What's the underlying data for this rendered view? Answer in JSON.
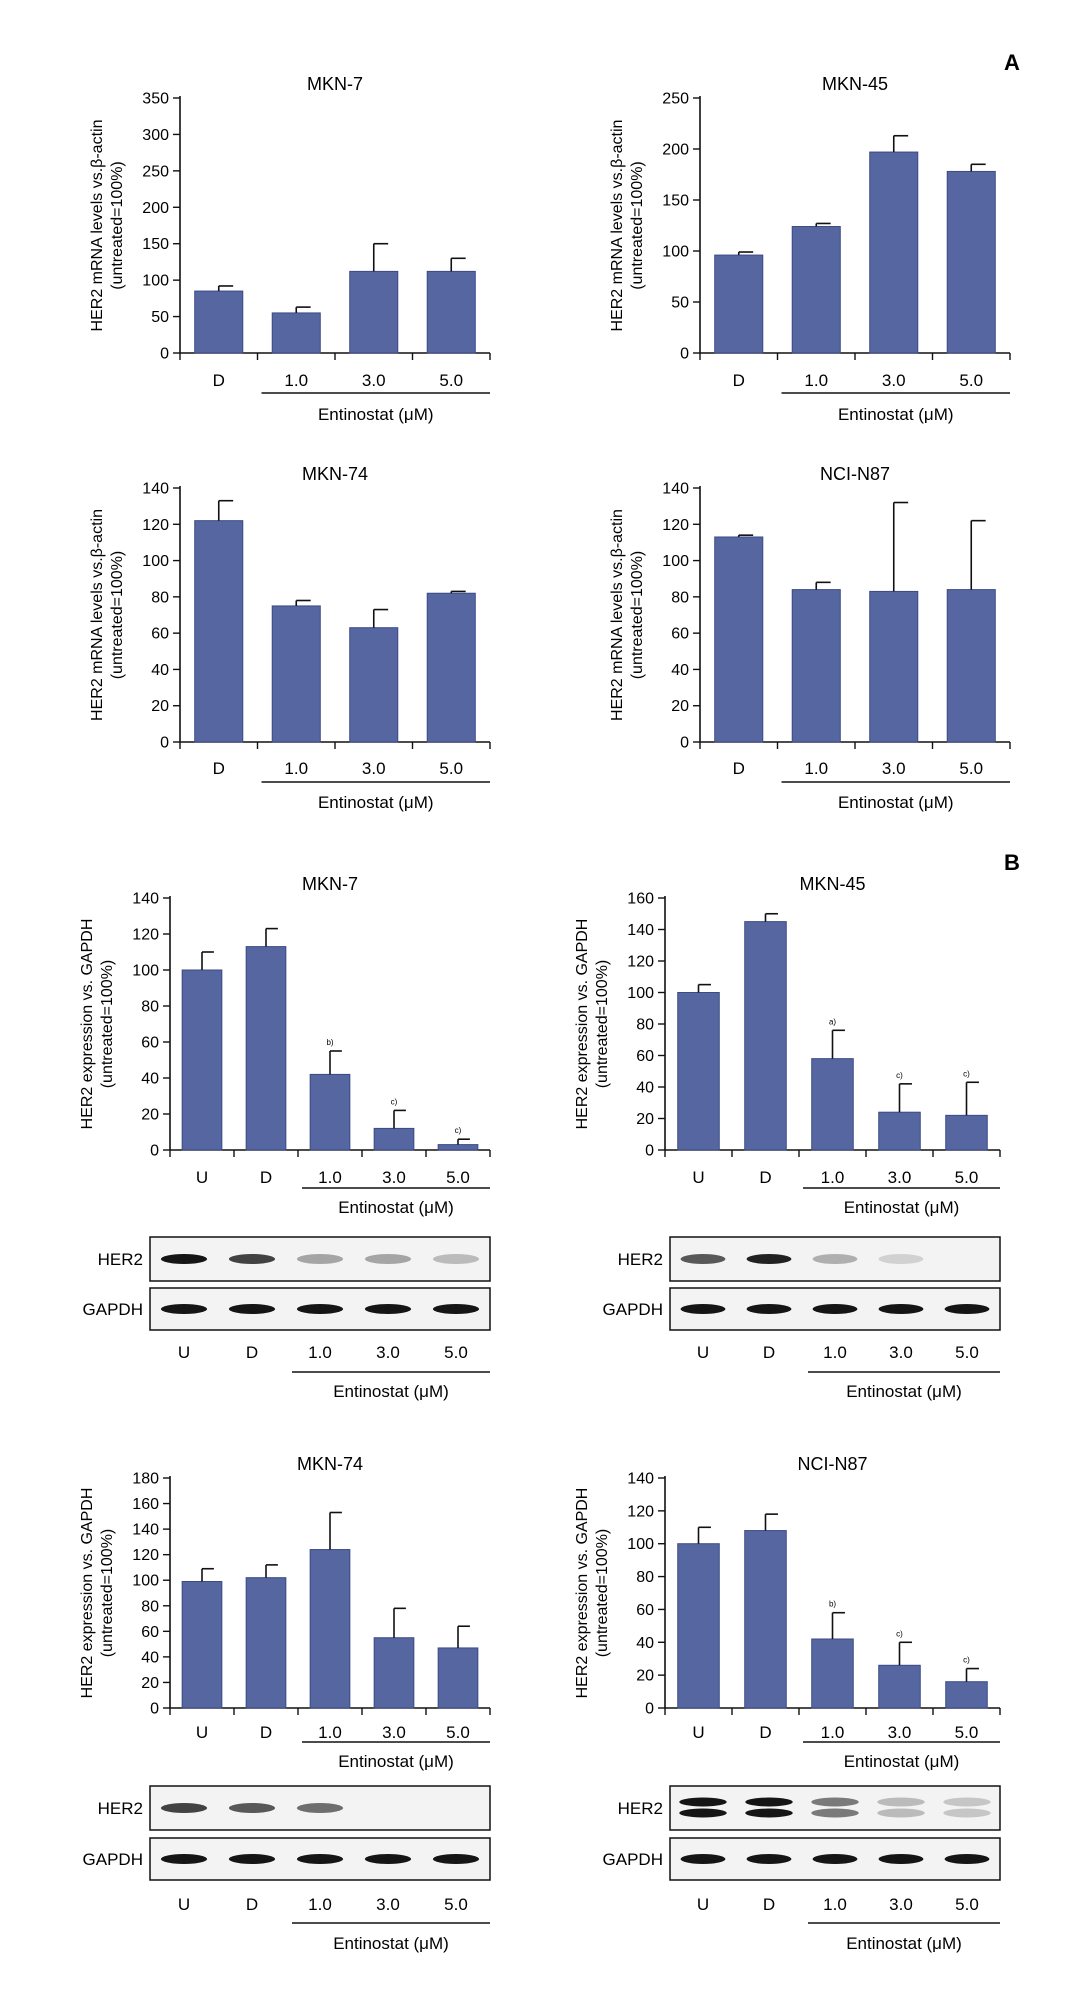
{
  "panel_labels": [
    "A",
    "B"
  ],
  "chart_data": [
    {
      "id": "a1",
      "type": "bar",
      "title": "MKN-7",
      "ylabel": [
        "HER2 mRNA levels vs.β-actin",
        "(untreated=100%)"
      ],
      "categories": [
        "D",
        "1.0",
        "3.0",
        "5.0"
      ],
      "values": [
        85,
        55,
        112,
        112
      ],
      "errors": [
        7,
        8,
        38,
        18
      ],
      "significance": [
        "",
        "",
        "",
        ""
      ],
      "ylim": [
        0,
        350
      ],
      "yticks": [
        0,
        50,
        100,
        150,
        200,
        250,
        300,
        350
      ],
      "xgroup_label": "Entinostat (μM)",
      "xgroup_from": 1
    },
    {
      "id": "a2",
      "type": "bar",
      "title": "MKN-45",
      "ylabel": [
        "HER2 mRNA levels vs.β-actin",
        "(untreated=100%)"
      ],
      "categories": [
        "D",
        "1.0",
        "3.0",
        "5.0"
      ],
      "values": [
        96,
        124,
        197,
        178
      ],
      "errors": [
        3,
        3,
        16,
        7
      ],
      "significance": [
        "",
        "",
        "",
        ""
      ],
      "ylim": [
        0,
        250
      ],
      "yticks": [
        0,
        50,
        100,
        150,
        200,
        250
      ],
      "xgroup_label": "Entinostat (μM)",
      "xgroup_from": 1
    },
    {
      "id": "a3",
      "type": "bar",
      "title": "MKN-74",
      "ylabel": [
        "HER2 mRNA levels vs.β-actin",
        "(untreated=100%)"
      ],
      "categories": [
        "D",
        "1.0",
        "3.0",
        "5.0"
      ],
      "values": [
        122,
        75,
        63,
        82
      ],
      "errors": [
        11,
        3,
        10,
        1
      ],
      "significance": [
        "",
        "",
        "",
        ""
      ],
      "ylim": [
        0,
        140
      ],
      "yticks": [
        0,
        20,
        40,
        60,
        80,
        100,
        120,
        140
      ],
      "xgroup_label": "Entinostat (μM)",
      "xgroup_from": 1
    },
    {
      "id": "a4",
      "type": "bar",
      "title": "NCI-N87",
      "ylabel": [
        "HER2 mRNA levels vs.β-actin",
        "(untreated=100%)"
      ],
      "categories": [
        "D",
        "1.0",
        "3.0",
        "5.0"
      ],
      "values": [
        113,
        84,
        83,
        84
      ],
      "errors": [
        1,
        4,
        49,
        38
      ],
      "significance": [
        "",
        "",
        "",
        ""
      ],
      "ylim": [
        0,
        140
      ],
      "yticks": [
        0,
        20,
        40,
        60,
        80,
        100,
        120,
        140
      ],
      "xgroup_label": "Entinostat (μM)",
      "xgroup_from": 1
    },
    {
      "id": "b1",
      "type": "bar",
      "title": "MKN-7",
      "ylabel": [
        "HER2 expression vs. GAPDH",
        "(untreated=100%)"
      ],
      "categories": [
        "U",
        "D",
        "1.0",
        "3.0",
        "5.0"
      ],
      "values": [
        100,
        113,
        42,
        12,
        3
      ],
      "errors": [
        10,
        10,
        13,
        10,
        3
      ],
      "significance": [
        "",
        "",
        "b)",
        "c)",
        "c)"
      ],
      "ylim": [
        0,
        140
      ],
      "yticks": [
        0,
        20,
        40,
        60,
        80,
        100,
        120,
        140
      ],
      "xgroup_label": "Entinostat (μM)",
      "xgroup_from": 2
    },
    {
      "id": "b2",
      "type": "bar",
      "title": "MKN-45",
      "ylabel": [
        "HER2 expression vs. GAPDH",
        "(untreated=100%)"
      ],
      "categories": [
        "U",
        "D",
        "1.0",
        "3.0",
        "5.0"
      ],
      "values": [
        100,
        145,
        58,
        24,
        22
      ],
      "errors": [
        5,
        5,
        18,
        18,
        21
      ],
      "significance": [
        "",
        "",
        "a)",
        "c)",
        "c)"
      ],
      "ylim": [
        0,
        160
      ],
      "yticks": [
        0,
        20,
        40,
        60,
        80,
        100,
        120,
        140,
        160
      ],
      "xgroup_label": "Entinostat (μM)",
      "xgroup_from": 2
    },
    {
      "id": "b3",
      "type": "bar",
      "title": "MKN-74",
      "ylabel": [
        "HER2 expression vs. GAPDH",
        "(untreated=100%)"
      ],
      "categories": [
        "U",
        "D",
        "1.0",
        "3.0",
        "5.0"
      ],
      "values": [
        99,
        102,
        124,
        55,
        47
      ],
      "errors": [
        10,
        10,
        29,
        23,
        17
      ],
      "significance": [
        "",
        "",
        "",
        "",
        ""
      ],
      "ylim": [
        0,
        180
      ],
      "yticks": [
        0,
        20,
        40,
        60,
        80,
        100,
        120,
        140,
        160,
        180
      ],
      "xgroup_label": "Entinostat (μM)",
      "xgroup_from": 2
    },
    {
      "id": "b4",
      "type": "bar",
      "title": "NCI-N87",
      "ylabel": [
        "HER2 expression vs. GAPDH",
        "(untreated=100%)"
      ],
      "categories": [
        "U",
        "D",
        "1.0",
        "3.0",
        "5.0"
      ],
      "values": [
        100,
        108,
        42,
        26,
        16
      ],
      "errors": [
        10,
        10,
        16,
        14,
        8
      ],
      "significance": [
        "",
        "",
        "b)",
        "c)",
        "c)"
      ],
      "ylim": [
        0,
        140
      ],
      "yticks": [
        0,
        20,
        40,
        60,
        80,
        100,
        120,
        140
      ],
      "xgroup_label": "Entinostat (μM)",
      "xgroup_from": 2
    }
  ],
  "blots": [
    {
      "id": "blot1",
      "rows": [
        {
          "label": "HER2",
          "intensity": [
            1.0,
            0.8,
            0.35,
            0.35,
            0.25
          ]
        },
        {
          "label": "GAPDH",
          "intensity": [
            1.0,
            1.0,
            1.0,
            1.0,
            1.0
          ]
        }
      ],
      "lanes": [
        "U",
        "D",
        "1.0",
        "3.0",
        "5.0"
      ],
      "xgroup_label": "Entinostat (μM)",
      "xgroup_from": 2
    },
    {
      "id": "blot2",
      "rows": [
        {
          "label": "HER2",
          "intensity": [
            0.7,
            0.95,
            0.3,
            0.15,
            0.0
          ]
        },
        {
          "label": "GAPDH",
          "intensity": [
            1.0,
            1.0,
            1.0,
            1.0,
            1.0
          ]
        }
      ],
      "lanes": [
        "U",
        "D",
        "1.0",
        "3.0",
        "5.0"
      ],
      "xgroup_label": "Entinostat (μM)",
      "xgroup_from": 2
    },
    {
      "id": "blot3",
      "rows": [
        {
          "label": "HER2",
          "intensity": [
            0.8,
            0.7,
            0.6,
            0.0,
            0.0
          ]
        },
        {
          "label": "GAPDH",
          "intensity": [
            1.0,
            1.0,
            1.0,
            1.0,
            1.0
          ]
        }
      ],
      "lanes": [
        "U",
        "D",
        "1.0",
        "3.0",
        "5.0"
      ],
      "xgroup_label": "Entinostat (μM)",
      "xgroup_from": 2
    },
    {
      "id": "blot4",
      "rows": [
        {
          "label": "HER2",
          "intensity": [
            1.0,
            1.0,
            0.55,
            0.25,
            0.2
          ],
          "doublet": true
        },
        {
          "label": "GAPDH",
          "intensity": [
            1.0,
            1.0,
            1.0,
            1.0,
            1.0
          ]
        }
      ],
      "lanes": [
        "U",
        "D",
        "1.0",
        "3.0",
        "5.0"
      ],
      "xgroup_label": "Entinostat (μM)",
      "xgroup_from": 2
    }
  ],
  "colors": {
    "bar": "#5566a0",
    "bar_edge": "#3c4a85",
    "axis": "#111111",
    "blot_band": "#151515"
  }
}
